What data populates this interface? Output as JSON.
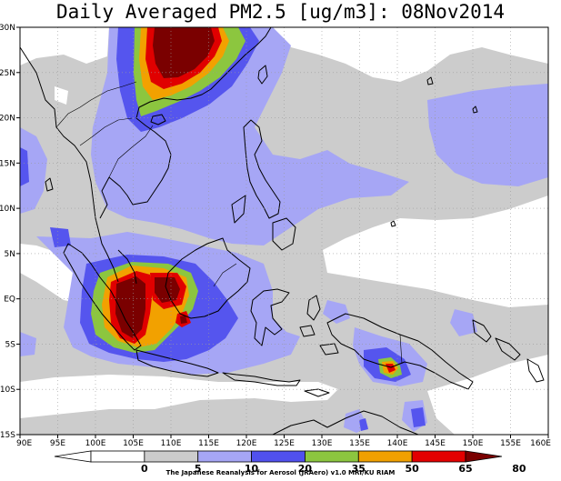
{
  "title": "Daily Averaged PM2.5 [ug/m3]: 08Nov2014",
  "credit": "The Japanese Reanalysis for Aerosol (JRAero) v1.0 MRI/KU RIAM",
  "lat_labels": [
    "30N",
    "25N",
    "20N",
    "15N",
    "10N",
    "5N",
    "EQ",
    "5S",
    "10S",
    "15S"
  ],
  "lon_labels": [
    "90E",
    "95E",
    "100E",
    "105E",
    "110E",
    "115E",
    "120E",
    "125E",
    "130E",
    "135E",
    "140E",
    "145E",
    "150E",
    "155E",
    "160E"
  ],
  "colorbar": {
    "ticks": [
      "0",
      "5",
      "10",
      "20",
      "35",
      "50",
      "65",
      "80"
    ],
    "colors": [
      "#ffffff",
      "#ffffff",
      "#cccccc",
      "#a6a6f5",
      "#5050ee",
      "#8cc63f",
      "#f0a000",
      "#e30000",
      "#7a0000"
    ]
  },
  "palette": {
    "c10": "#cccccc",
    "c20": "#a6a6f5",
    "c35": "#5555ee",
    "c50": "#8cc63f",
    "c65": "#f2a100",
    "c80": "#e00000",
    "cmax": "#7a0000"
  }
}
